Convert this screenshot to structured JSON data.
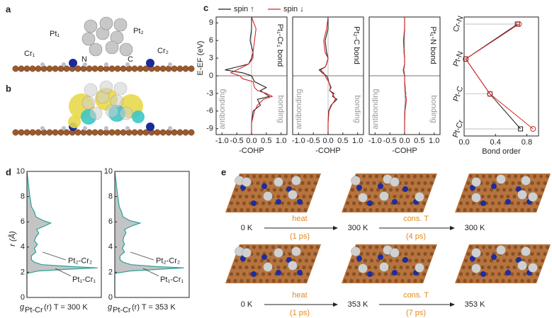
{
  "panel_labels": [
    "a",
    "b",
    "c",
    "d",
    "e"
  ],
  "structure": {
    "labels": [
      "Pt₁",
      "Pt₂",
      "Cr₁",
      "N",
      "C",
      "Cr₂"
    ]
  },
  "chart_data": [
    {
      "type": "line",
      "title": "Pt₁-Cr₁ bond",
      "xlabel": "-COHP",
      "ylabel": "E-EF (eV)",
      "region_labels": [
        "antibonding",
        "bonding"
      ],
      "energies": [
        -10,
        -8,
        -6,
        -5,
        -4,
        -3.5,
        -3,
        -2.5,
        -2,
        -1,
        -0.5,
        0,
        0.5,
        1,
        1.5,
        2,
        3,
        4,
        6,
        8,
        10
      ],
      "series": [
        {
          "name": "spin ↑",
          "color": "#222222",
          "values": [
            0,
            0,
            0.05,
            0.3,
            0.2,
            0.6,
            0.45,
            0.3,
            0.5,
            0.1,
            0.05,
            0,
            -0.3,
            -0.9,
            -0.5,
            -0.1,
            0,
            0.05,
            -0.05,
            0,
            0
          ]
        },
        {
          "name": "spin ↓",
          "color": "#d62728",
          "values": [
            0,
            0,
            0.1,
            0.2,
            0.4,
            0.7,
            0.5,
            0.2,
            0.1,
            0.05,
            -0.3,
            -0.4,
            -0.7,
            -0.5,
            -0.3,
            -0.1,
            0.05,
            0.05,
            0.1,
            0.15,
            0
          ]
        }
      ],
      "xlim": [
        -1.2,
        1.2
      ],
      "xticks": [
        {
          "value": -1,
          "label": "-1.0"
        },
        -0.5,
        {
          "value": 0,
          "label": "0.0"
        },
        0.5,
        {
          "value": 1,
          "label": "1.0"
        }
      ],
      "ylim": [
        -10,
        10
      ],
      "yticks": [
        9,
        6,
        3,
        0,
        -3,
        -6,
        -9
      ]
    },
    {
      "type": "line",
      "title": "Pt₂-C bond",
      "xlabel": "-COHP",
      "region_labels": [
        "antibonding",
        "bonding"
      ],
      "energies": [
        -10,
        -8,
        -6,
        -5,
        -4,
        -3.5,
        -3,
        -2.5,
        -2,
        -1,
        -0.5,
        0,
        0.5,
        1,
        1.5,
        2,
        3,
        4,
        6,
        8,
        10
      ],
      "series": [
        {
          "color": "#222222",
          "values": [
            0,
            0,
            0.02,
            0.1,
            0.3,
            0.15,
            0.2,
            0.05,
            0.1,
            0.02,
            0,
            -0.05,
            -0.2,
            -0.3,
            -0.1,
            -0.05,
            0,
            -0.05,
            -0.1,
            0,
            0
          ]
        },
        {
          "color": "#d62728",
          "values": [
            0,
            0,
            0.03,
            0.12,
            0.25,
            0.2,
            0.15,
            0.05,
            0.08,
            0.02,
            -0.05,
            -0.1,
            -0.15,
            -0.25,
            -0.1,
            -0.05,
            0,
            -0.1,
            -0.15,
            -0.05,
            0
          ]
        }
      ],
      "xlim": [
        -1.2,
        1.2
      ],
      "xticks": [
        {
          "value": -1,
          "label": "-1.0"
        },
        -0.5,
        {
          "value": 0,
          "label": "0.0"
        },
        0.5,
        {
          "value": 1,
          "label": "1.0"
        }
      ],
      "ylim": [
        -10,
        10
      ]
    },
    {
      "type": "line",
      "title": "Pt₁-N bond",
      "xlabel": "-COHP",
      "region_labels": [
        "antibonding",
        "bonding"
      ],
      "energies": [
        -10,
        -8,
        -6,
        -5,
        -4,
        -3.5,
        -3,
        -2.5,
        -2,
        -1,
        -0.5,
        0,
        0.5,
        1,
        1.5,
        2,
        3,
        4,
        6,
        8,
        10
      ],
      "series": [
        {
          "color": "#222222",
          "values": [
            0,
            0,
            0.01,
            0.03,
            0.05,
            0.03,
            0.04,
            0.02,
            0.02,
            0,
            0,
            0,
            -0.02,
            -0.04,
            -0.02,
            0,
            0,
            -0.02,
            -0.03,
            0,
            0
          ]
        },
        {
          "color": "#d62728",
          "values": [
            0,
            0,
            0.01,
            0.04,
            0.06,
            0.04,
            0.03,
            0.02,
            0.01,
            0,
            0,
            0,
            -0.03,
            -0.05,
            -0.02,
            0,
            0,
            -0.02,
            -0.04,
            0,
            0
          ]
        }
      ],
      "xlim": [
        -1.2,
        1.2
      ],
      "xticks": [
        {
          "value": -1,
          "label": "-1.0"
        },
        -0.5,
        {
          "value": 0,
          "label": "0.0"
        },
        0.5,
        {
          "value": 1,
          "label": "1.0"
        }
      ],
      "ylim": [
        -10,
        10
      ]
    },
    {
      "type": "dotline",
      "xlabel": "Bond order",
      "categories": [
        "Cr-N",
        "Pt-N",
        "Pt-C",
        "Pt-Cr"
      ],
      "series": [
        {
          "color": "#222222",
          "marker": "square",
          "values": [
            0.68,
            0.02,
            0.33,
            0.72
          ]
        },
        {
          "color": "#d62728",
          "marker": "circle",
          "values": [
            0.7,
            0.02,
            0.33,
            0.88
          ]
        }
      ],
      "xlim": [
        0,
        0.95
      ],
      "xticks": [
        {
          "value": 0,
          "label": "0.0"
        },
        0.4,
        0.8
      ]
    },
    {
      "type": "area",
      "ylabel": "r (Å)",
      "xlabel": {
        "main": "g",
        "sub": "Pt-Cr",
        "rest": "(r) T = 300 K"
      },
      "annotations": [
        "Pt₂-Cr₂",
        "Pt₁-Cr₁"
      ],
      "r": [
        0,
        1.9,
        2.1,
        2.25,
        2.35,
        2.45,
        2.6,
        2.8,
        3.0,
        3.3,
        3.6,
        3.9,
        4.2,
        4.5,
        4.8,
        5.1,
        5.4,
        5.7,
        5.9,
        6.1,
        6.4,
        6.8,
        7.2,
        7.6,
        8,
        8.5,
        9,
        10
      ],
      "values": [
        0,
        0,
        1.5,
        6,
        9.5,
        6,
        2,
        1,
        0.6,
        0.6,
        1.2,
        1.0,
        1.4,
        1.0,
        1.2,
        1.6,
        1.3,
        2.5,
        3.2,
        2.2,
        1.2,
        1.0,
        0.6,
        0.5,
        0.4,
        0.3,
        0.2,
        0
      ],
      "color": "#2aa198",
      "xlim": [
        0,
        10
      ],
      "ylim": [
        0,
        10
      ],
      "yticks": [
        0,
        2,
        4,
        6,
        8,
        10
      ]
    },
    {
      "type": "area",
      "xlabel": {
        "main": "g",
        "sub": "Pt-Cr",
        "rest": "(r) T = 353 K"
      },
      "annotations": [
        "Pt₂-Cr₂",
        "Pt₁-Cr₁"
      ],
      "r": [
        0,
        1.9,
        2.1,
        2.25,
        2.35,
        2.45,
        2.6,
        2.8,
        3.0,
        3.3,
        3.6,
        3.9,
        4.2,
        4.5,
        4.8,
        5.1,
        5.4,
        5.7,
        5.9,
        6.1,
        6.4,
        6.8,
        7.2,
        7.6,
        8,
        8.5,
        9,
        10
      ],
      "values": [
        0,
        0,
        2,
        6.5,
        9.3,
        5.5,
        2.2,
        1.1,
        0.7,
        0.7,
        1.3,
        1.0,
        1.3,
        1.1,
        1.2,
        1.5,
        1.3,
        2.4,
        3.4,
        2.0,
        1.1,
        0.9,
        0.6,
        0.5,
        0.4,
        0.3,
        0.2,
        0
      ],
      "color": "#2aa198",
      "xlim": [
        0,
        10
      ],
      "ylim": [
        0,
        10
      ],
      "yticks": [
        0,
        2,
        4,
        6,
        8,
        10
      ]
    }
  ],
  "md": {
    "rows": [
      {
        "start": "0 K",
        "step1": "heat",
        "time1": "(1 ps)",
        "mid": "300 K",
        "step2": "cons. T",
        "time2": "(4 ps)",
        "end": "300 K"
      },
      {
        "start": "0 K",
        "step1": "heat",
        "time1": "(1 ps)",
        "mid": "353 K",
        "step2": "cons. T",
        "time2": "(7 ps)",
        "end": "353 K"
      }
    ]
  }
}
